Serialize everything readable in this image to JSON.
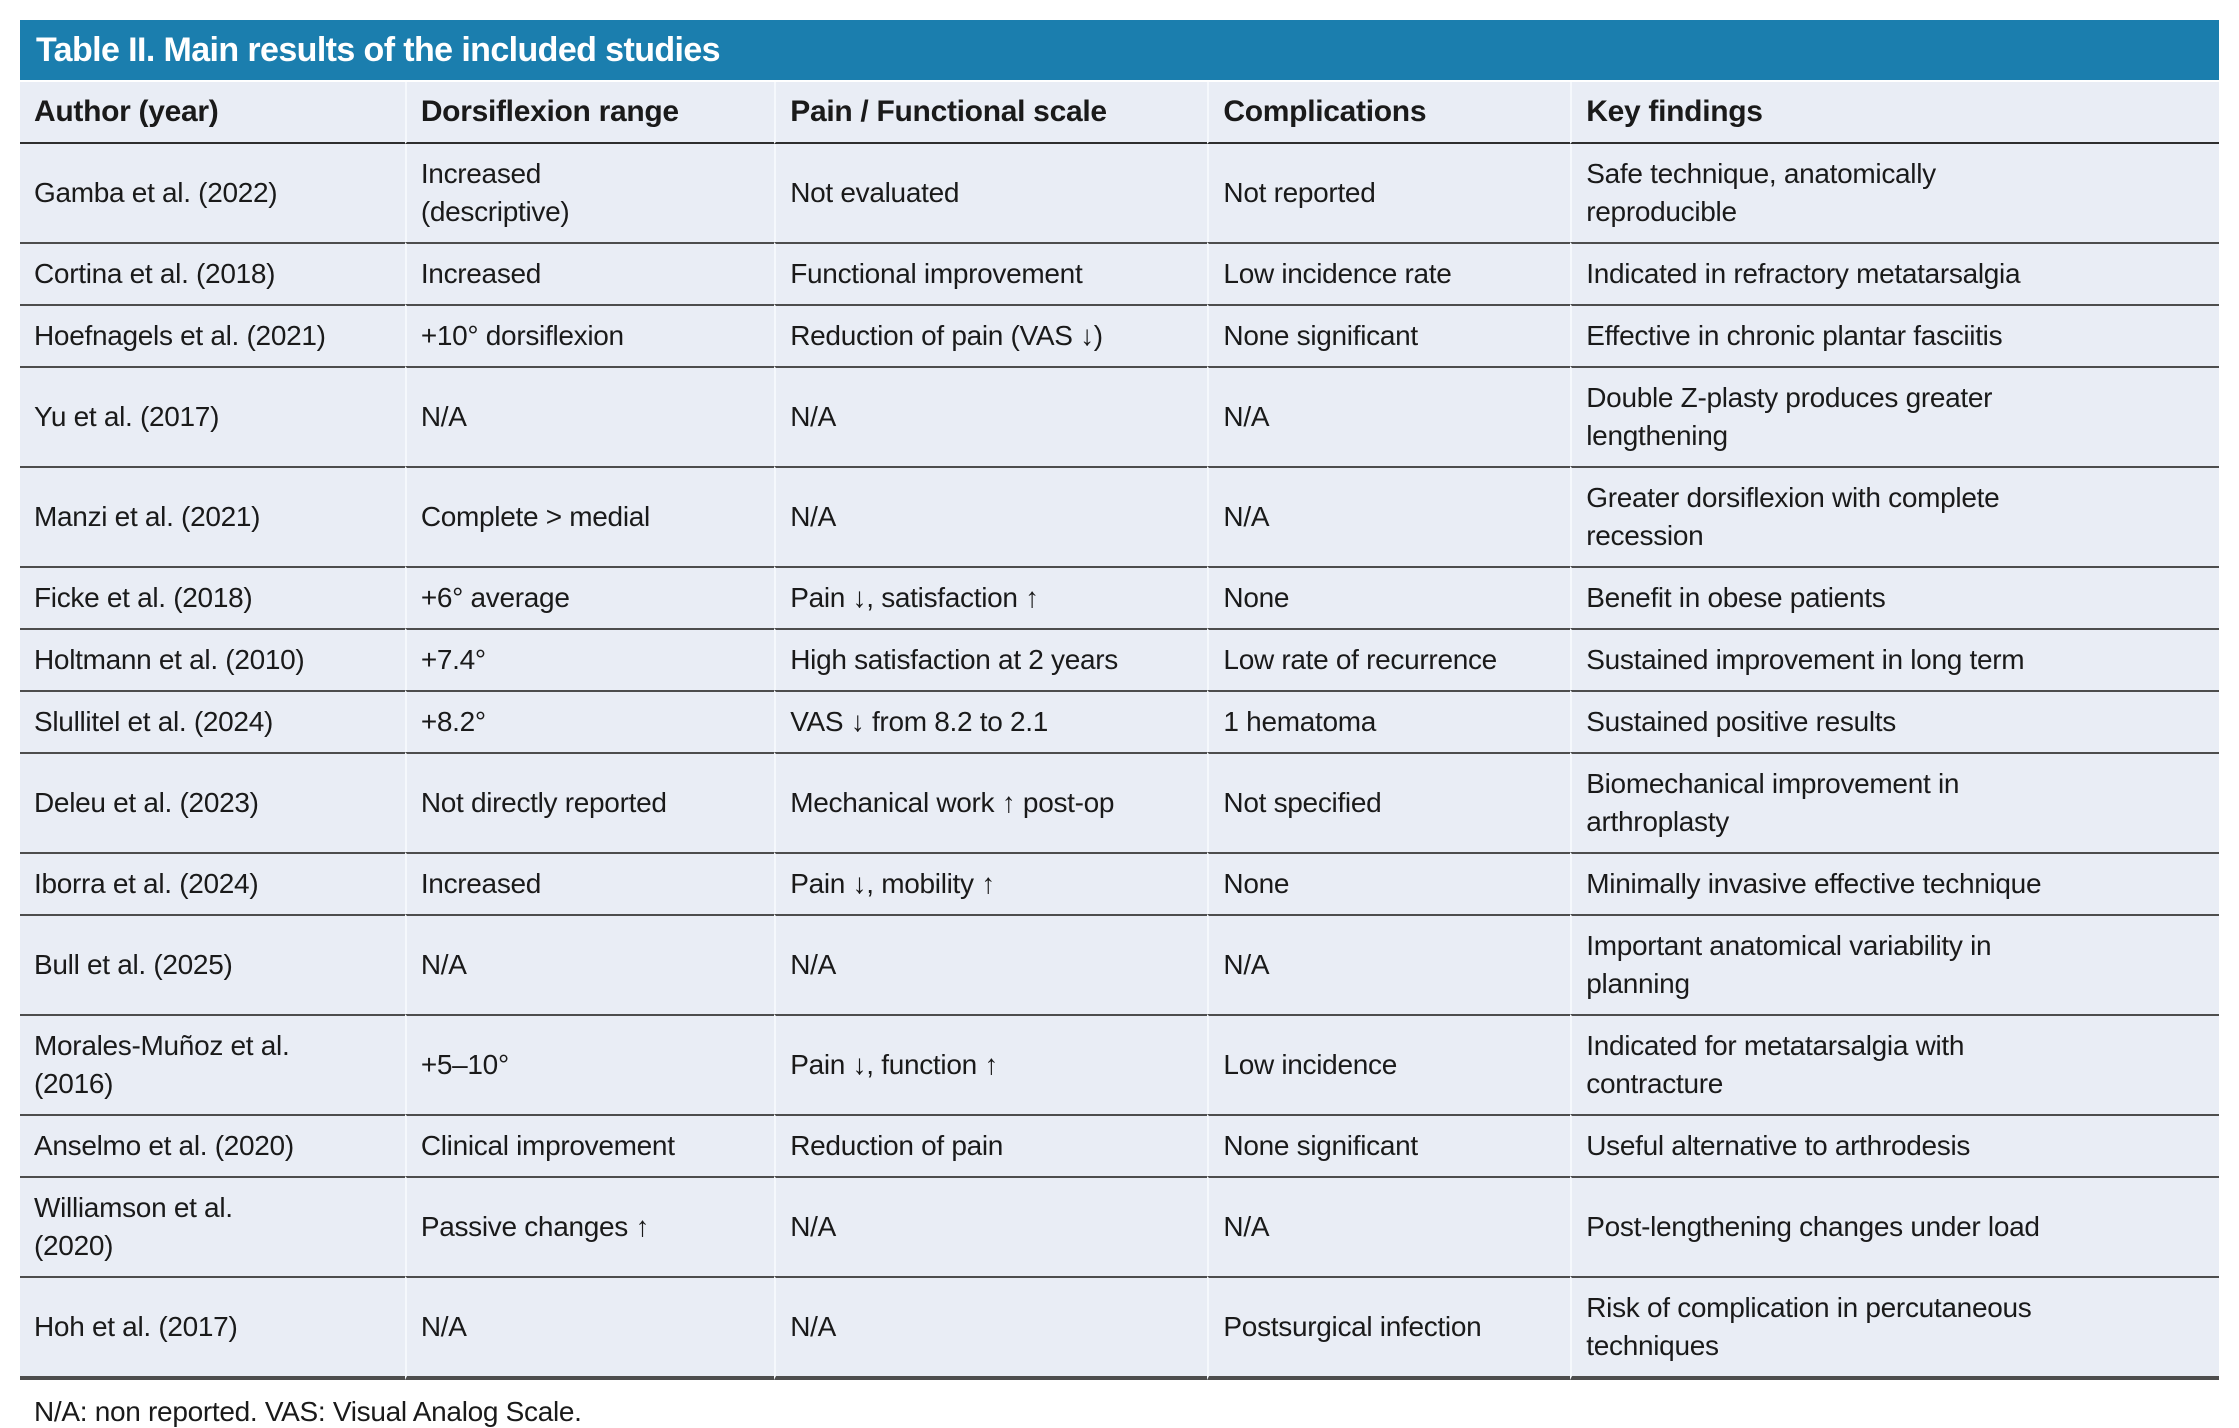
{
  "table": {
    "title": "Table II. Main results of the included studies",
    "columns": [
      "Author (year)",
      "Dorsiflexion range",
      "Pain / Functional scale",
      "Complications",
      "Key findings"
    ],
    "rows": [
      {
        "author": "Gamba et al. (2022)",
        "dorsiflexion": "Increased\n(descriptive)",
        "pain": "Not evaluated",
        "complications": "Not reported",
        "findings": "Safe technique, anatomically\nreproducible"
      },
      {
        "author": "Cortina et al. (2018)",
        "dorsiflexion": "Increased",
        "pain": "Functional improvement",
        "complications": "Low incidence rate",
        "findings": "Indicated in refractory metatarsalgia"
      },
      {
        "author": "Hoefnagels et al. (2021)",
        "dorsiflexion": "+10° dorsiflexion",
        "pain": "Reduction of pain (VAS ↓)",
        "complications": "None significant",
        "findings": "Effective in chronic plantar fasciitis"
      },
      {
        "author": "Yu et al. (2017)",
        "dorsiflexion": "N/A",
        "pain": "N/A",
        "complications": "N/A",
        "findings": "Double Z-plasty produces greater\nlengthening"
      },
      {
        "author": "Manzi et al. (2021)",
        "dorsiflexion": "Complete > medial",
        "pain": "N/A",
        "complications": "N/A",
        "findings": "Greater dorsiflexion with complete\nrecession"
      },
      {
        "author": "Ficke et al. (2018)",
        "dorsiflexion": "+6° average",
        "pain": "Pain ↓, satisfaction ↑",
        "complications": "None",
        "findings": "Benefit in obese patients"
      },
      {
        "author": "Holtmann et al. (2010)",
        "dorsiflexion": "+7.4°",
        "pain": "High satisfaction at 2 years",
        "complications": "Low rate of recurrence",
        "findings": "Sustained improvement in long term"
      },
      {
        "author": "Slullitel et al. (2024)",
        "dorsiflexion": "+8.2°",
        "pain": "VAS ↓ from 8.2 to 2.1",
        "complications": "1 hematoma",
        "findings": "Sustained positive results"
      },
      {
        "author": "Deleu et al. (2023)",
        "dorsiflexion": "Not directly reported",
        "pain": "Mechanical work ↑ post-op",
        "complications": "Not specified",
        "findings": "Biomechanical improvement in\narthroplasty"
      },
      {
        "author": "Iborra et al. (2024)",
        "dorsiflexion": "Increased",
        "pain": "Pain ↓, mobility ↑",
        "complications": "None",
        "findings": "Minimally invasive effective technique"
      },
      {
        "author": "Bull et al. (2025)",
        "dorsiflexion": "N/A",
        "pain": "N/A",
        "complications": "N/A",
        "findings": "Important anatomical variability in\nplanning"
      },
      {
        "author": "Morales-Muñoz et al.\n(2016)",
        "dorsiflexion": "+5–10°",
        "pain": "Pain ↓, function ↑",
        "complications": "Low incidence",
        "findings": "Indicated for metatarsalgia with\ncontracture"
      },
      {
        "author": "Anselmo et al. (2020)",
        "dorsiflexion": "Clinical improvement",
        "pain": "Reduction of pain",
        "complications": "None significant",
        "findings": "Useful alternative to arthrodesis"
      },
      {
        "author": "Williamson et al.\n(2020)",
        "dorsiflexion": "Passive changes ↑",
        "pain": "N/A",
        "complications": "N/A",
        "findings": "Post-lengthening changes under load"
      },
      {
        "author": "Hoh et al. (2017)",
        "dorsiflexion": "N/A",
        "pain": "N/A",
        "complications": "Postsurgical infection",
        "findings": "Risk of complication in percutaneous\ntechniques"
      }
    ],
    "footnote": "N/A: non reported. VAS: Visual Analog Scale.",
    "colors": {
      "title_bg": "#1B7EAE",
      "title_text": "#FFFFFF",
      "row_bg": "#E9EDF5",
      "separator": "#4D4D4D",
      "text": "#1A1A1A"
    }
  }
}
